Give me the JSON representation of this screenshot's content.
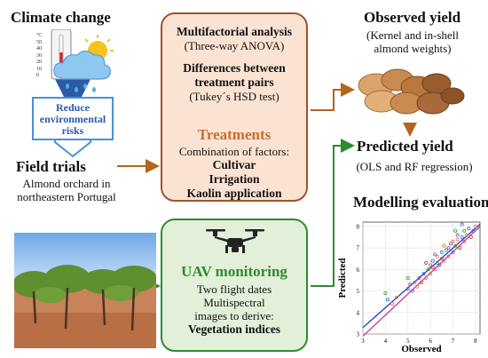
{
  "climate": {
    "title": "Climate change",
    "thermo_ticks": [
      "°C",
      "50",
      "40",
      "30",
      "20",
      "10",
      "0"
    ],
    "risk_line1": "Reduce",
    "risk_line2": "environmental",
    "risk_line3": "risks"
  },
  "field": {
    "title": "Field trials",
    "line1": "Almond orchard in",
    "line2": "northeastern Portugal"
  },
  "analysis": {
    "title": "Multifactorial analysis",
    "subtitle": "(Three-way ANOVA)",
    "diff_line1": "Differences between",
    "diff_line2": "treatment pairs",
    "diff_line3": "(Tukey´s HSD test)"
  },
  "treatments": {
    "title": "Treatments",
    "intro": "Combination of factors:",
    "factors": [
      "Cultivar",
      "Irrigation",
      "Kaolin application"
    ]
  },
  "uav": {
    "title": "UAV monitoring",
    "line1": "Two flight dates",
    "line2": "Multispectral",
    "line3": "images to derive:",
    "line4": "Vegetation indices"
  },
  "observed": {
    "title": "Observed yield",
    "line1": "(Kernel and in-shell",
    "line2": "almond weights)"
  },
  "predicted": {
    "title": "Predicted yield",
    "subtitle": "(OLS and RF regression)"
  },
  "modelling": {
    "title": "Modelling evaluation"
  },
  "chart_data": {
    "type": "scatter",
    "title": "",
    "xlabel": "Observed",
    "ylabel": "Predicted",
    "xlim": [
      3,
      8.2
    ],
    "ylim": [
      3,
      8.2
    ],
    "xticks": [
      "3",
      "4",
      "5",
      "6",
      "7",
      "8"
    ],
    "yticks": [
      "3",
      "4",
      "5",
      "6",
      "7",
      "8"
    ],
    "grid": true,
    "lines": [
      {
        "color": "#1f3fbf",
        "x": [
          3,
          8.2
        ],
        "y": [
          3.3,
          8.1
        ]
      },
      {
        "color": "#c23b8a",
        "x": [
          3,
          8.2
        ],
        "y": [
          2.9,
          8.0
        ]
      }
    ],
    "points": [
      [
        4.1,
        4.6
      ],
      [
        4.3,
        4.4
      ],
      [
        4.0,
        4.9
      ],
      [
        4.5,
        4.7
      ],
      [
        5.0,
        5.1
      ],
      [
        5.1,
        5.3
      ],
      [
        5.2,
        5.0
      ],
      [
        5.3,
        5.4
      ],
      [
        5.0,
        5.6
      ],
      [
        5.4,
        5.2
      ],
      [
        5.5,
        5.6
      ],
      [
        5.6,
        5.4
      ],
      [
        5.7,
        5.8
      ],
      [
        5.8,
        5.6
      ],
      [
        5.9,
        6.0
      ],
      [
        6.0,
        5.8
      ],
      [
        6.0,
        6.2
      ],
      [
        6.1,
        6.1
      ],
      [
        6.1,
        6.4
      ],
      [
        6.2,
        6.0
      ],
      [
        6.3,
        6.3
      ],
      [
        6.3,
        6.6
      ],
      [
        6.4,
        6.2
      ],
      [
        6.5,
        6.5
      ],
      [
        6.5,
        6.8
      ],
      [
        6.6,
        6.4
      ],
      [
        6.7,
        6.9
      ],
      [
        6.8,
        6.6
      ],
      [
        6.8,
        7.0
      ],
      [
        6.9,
        7.2
      ],
      [
        7.0,
        6.8
      ],
      [
        7.0,
        7.3
      ],
      [
        7.1,
        7.1
      ],
      [
        7.2,
        7.4
      ],
      [
        7.2,
        7.6
      ],
      [
        7.3,
        7.0
      ],
      [
        7.4,
        7.5
      ],
      [
        7.5,
        7.3
      ],
      [
        7.5,
        7.8
      ],
      [
        7.6,
        7.6
      ],
      [
        7.7,
        7.9
      ],
      [
        7.8,
        7.5
      ],
      [
        7.9,
        7.8
      ],
      [
        8.0,
        8.0
      ],
      [
        7.1,
        7.8
      ],
      [
        6.6,
        7.1
      ],
      [
        6.2,
        6.7
      ],
      [
        5.8,
        6.3
      ],
      [
        7.4,
        8.1
      ]
    ],
    "point_colors": [
      "#2a6fdb",
      "#e05aa8",
      "#3a9b3a",
      "#d9822b",
      "#7b4fc9",
      "#c23b3b"
    ]
  },
  "colors": {
    "orange_border": "#a0522d",
    "orange_fill": "#fbe3d3",
    "green_border": "#2e8b2e",
    "green_fill": "#e2f0d9",
    "arrow_brown": "#b5651d",
    "arrow_green": "#2e8b2e",
    "treat_title": "#c8702a",
    "risk_blue": "#2b5aa8"
  }
}
